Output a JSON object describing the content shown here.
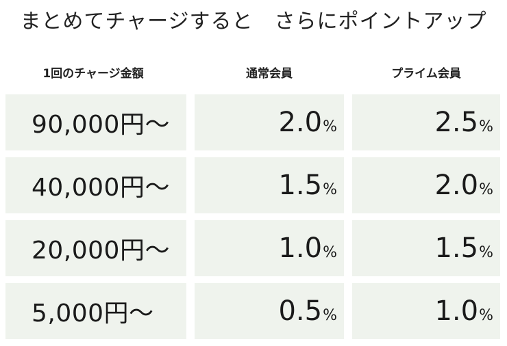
{
  "title": "まとめてチャージすると　さらにポイントアップ",
  "headers": {
    "amount": "1回のチャージ金額",
    "regular": "通常会員",
    "prime": "プライム会員"
  },
  "rows": [
    {
      "amount": "90,000円〜",
      "regular": "2.0",
      "prime": "2.5"
    },
    {
      "amount": "40,000円〜",
      "regular": "1.5",
      "prime": "2.0"
    },
    {
      "amount": "20,000円〜",
      "regular": "1.0",
      "prime": "1.5"
    },
    {
      "amount": "5,000円〜",
      "regular": "0.5",
      "prime": "1.0"
    }
  ],
  "unit": "%",
  "colors": {
    "cell_background": "#eff3ed",
    "text": "#1a1a1a"
  }
}
